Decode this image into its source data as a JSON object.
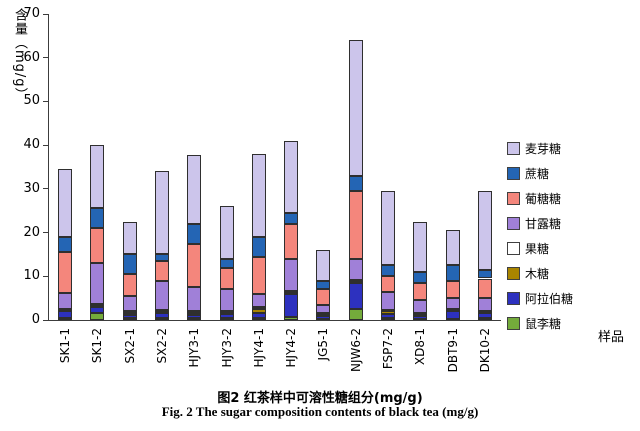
{
  "figure": {
    "caption_cn": "图2 红茶样中可溶性糖组分(mg/g)",
    "caption_en": "Fig. 2  The sugar composition contents of black tea (mg/g)"
  },
  "chart_data": {
    "type": "bar",
    "stacked": true,
    "title": "图2 红茶样中可溶性糖组分(mg/g)",
    "xlabel": "样品",
    "ylabel": "含量（mg/g）",
    "ylim": [
      0,
      70
    ],
    "ytick_step": 10,
    "grid": false,
    "legend_position": "right",
    "categories": [
      "SK1-1",
      "SK1-2",
      "SX2-1",
      "SX2-2",
      "HJY3-1",
      "HJY3-2",
      "HJY4-1",
      "HJY4-2",
      "JG5-1",
      "NJW6-2",
      "FSP7-2",
      "XD8-1",
      "DBT9-1",
      "DK10-2"
    ],
    "series": [
      {
        "name": "鼠李糖",
        "color": "#74ab3b",
        "values": [
          0.5,
          1.5,
          0.5,
          0.5,
          0.5,
          0.5,
          0.5,
          0.7,
          0.3,
          2.5,
          0.5,
          0.3,
          0.3,
          0.5
        ]
      },
      {
        "name": "阿拉伯糖",
        "color": "#2d31bf",
        "values": [
          1.5,
          1.5,
          0.7,
          1.2,
          0.7,
          0.8,
          1.2,
          5.3,
          0.7,
          6.0,
          0.8,
          0.7,
          1.7,
          1.0
        ]
      },
      {
        "name": "木糖",
        "color": "#a98500",
        "values": [
          0.3,
          0.3,
          0.5,
          0.3,
          0.5,
          0.4,
          0.8,
          0.3,
          0.3,
          0.3,
          0.7,
          0.3,
          0.3,
          0.3
        ]
      },
      {
        "name": "果糖",
        "color": "#ffffff",
        "values": [
          0.3,
          0.3,
          0.3,
          0.3,
          0.3,
          0.3,
          0.5,
          0.3,
          0.2,
          0.4,
          0.3,
          0.2,
          0.2,
          0.2
        ]
      },
      {
        "name": "甘露糖",
        "color": "#a080d8",
        "values": [
          3.5,
          9.5,
          3.5,
          6.7,
          5.5,
          5.0,
          3.0,
          7.4,
          2.0,
          4.8,
          4.2,
          3.0,
          2.5,
          3.0
        ]
      },
      {
        "name": "葡糖糖",
        "color": "#f4867c",
        "values": [
          9.5,
          8.0,
          5.0,
          4.5,
          10.0,
          5.0,
          8.5,
          8.0,
          3.5,
          15.5,
          3.5,
          4.0,
          4.0,
          4.5
        ]
      },
      {
        "name": "蔗糖",
        "color": "#2465b4",
        "values": [
          3.5,
          4.5,
          4.5,
          1.5,
          4.5,
          2.0,
          4.5,
          2.5,
          2.0,
          3.5,
          2.5,
          2.5,
          3.5,
          2.0
        ]
      },
      {
        "name": "麦芽糖",
        "color": "#ccc5eb",
        "values": [
          15.4,
          14.4,
          7.5,
          19.0,
          15.8,
          12.0,
          19.0,
          16.5,
          7.0,
          31.0,
          17.0,
          11.5,
          8.0,
          18.0
        ]
      }
    ],
    "series_note": "series listed bottom-to-top of stack; legend shown top-to-bottom in reverse order",
    "totals": [
      34.5,
      40.0,
      22.5,
      34.0,
      37.8,
      26.0,
      38.0,
      41.0,
      16.0,
      64.0,
      29.5,
      22.5,
      20.5,
      29.5
    ]
  }
}
